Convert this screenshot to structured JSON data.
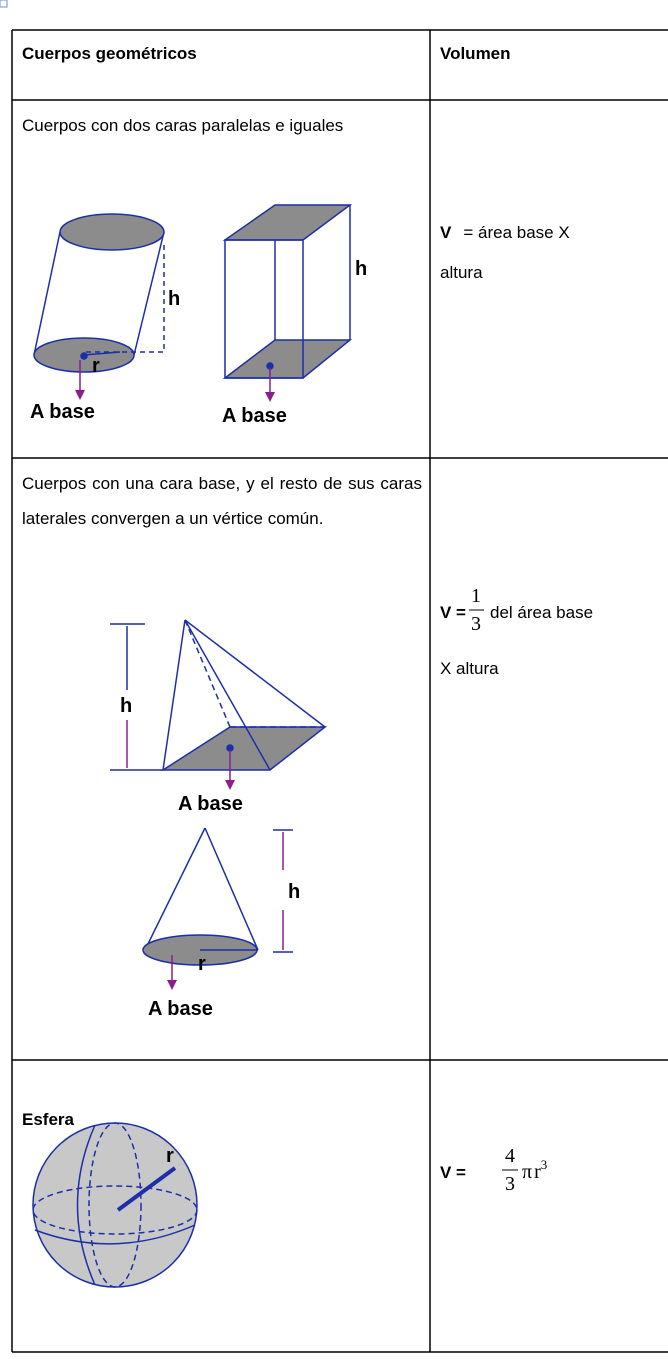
{
  "table": {
    "headers": [
      "Cuerpos geométricos",
      "Volumen"
    ],
    "rows": [
      {
        "description": "Cuerpos con dos caras paralelas e iguales",
        "figure_labels": [
          "h",
          "r",
          "A base",
          "h",
          "A base"
        ],
        "formula": {
          "symbol": "V",
          "line1": "= área base X",
          "line2": "altura"
        }
      },
      {
        "description": "Cuerpos con una cara base, y el resto de sus caras laterales convergen a un vértice común.",
        "figure_labels": [
          "h",
          "A base",
          "h",
          "r",
          "A base"
        ],
        "formula": {
          "symbol": "V =",
          "numerator": "1",
          "denominator": "3",
          "line1": "del área base",
          "line2": "X altura"
        }
      },
      {
        "description": "Esfera",
        "figure_labels": [
          "r"
        ],
        "formula": {
          "symbol": "V =",
          "numerator": "4",
          "denominator": "3",
          "constant": "π",
          "variable": "r",
          "exponent": "3"
        }
      }
    ]
  }
}
